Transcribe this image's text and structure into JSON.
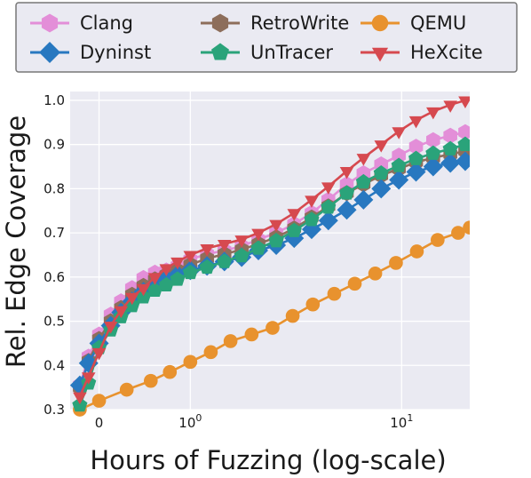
{
  "chart_data": {
    "type": "line",
    "title": "",
    "xlabel": "Hours of Fuzzing (log-scale)",
    "ylabel": "Rel. Edge Coverage",
    "xscale": "log",
    "xlim": [
      0.27,
      21
    ],
    "ylim": [
      0.3,
      1.02
    ],
    "grid": true,
    "background": "#eaeaf2",
    "legend_position": "top",
    "y_ticks": [
      "0.3",
      "0.4",
      "0.5",
      "0.6",
      "0.7",
      "0.8",
      "0.9",
      "1.0"
    ],
    "x_ticks": [
      {
        "value": 0.37,
        "label": "0"
      },
      {
        "value": 1,
        "base": "10",
        "exp": "0"
      },
      {
        "value": 10,
        "base": "10",
        "exp": "1"
      }
    ],
    "series": [
      {
        "name": "Clang",
        "color": "#e38ed8",
        "marker": "hexagon",
        "x": [
          0.3,
          0.33,
          0.37,
          0.42,
          0.47,
          0.53,
          0.6,
          0.68,
          0.77,
          0.87,
          1,
          1.2,
          1.45,
          1.75,
          2.1,
          2.55,
          3.1,
          3.75,
          4.5,
          5.5,
          6.6,
          8,
          9.7,
          11.7,
          14.1,
          17,
          20
        ],
        "y": [
          0.355,
          0.42,
          0.47,
          0.515,
          0.545,
          0.575,
          0.598,
          0.61,
          0.615,
          0.625,
          0.64,
          0.652,
          0.66,
          0.67,
          0.685,
          0.7,
          0.72,
          0.745,
          0.775,
          0.81,
          0.835,
          0.855,
          0.875,
          0.895,
          0.91,
          0.92,
          0.928
        ]
      },
      {
        "name": "RetroWrite",
        "color": "#8d6e5b",
        "marker": "hexagon",
        "x": [
          0.3,
          0.33,
          0.37,
          0.42,
          0.47,
          0.53,
          0.6,
          0.68,
          0.77,
          0.87,
          1,
          1.2,
          1.45,
          1.75,
          2.1,
          2.55,
          3.1,
          3.75,
          4.5,
          5.5,
          6.6,
          8,
          9.7,
          11.7,
          14.1,
          17,
          20
        ],
        "y": [
          0.35,
          0.41,
          0.46,
          0.5,
          0.53,
          0.56,
          0.58,
          0.595,
          0.605,
          0.615,
          0.628,
          0.642,
          0.652,
          0.662,
          0.675,
          0.69,
          0.71,
          0.735,
          0.76,
          0.79,
          0.81,
          0.83,
          0.845,
          0.86,
          0.87,
          0.878,
          0.885
        ]
      },
      {
        "name": "QEMU",
        "color": "#e8922e",
        "marker": "circle",
        "x": [
          0.3,
          0.37,
          0.5,
          0.65,
          0.8,
          1,
          1.25,
          1.55,
          1.95,
          2.45,
          3.05,
          3.8,
          4.8,
          6,
          7.5,
          9.4,
          11.8,
          14.8,
          18.5,
          21
        ],
        "y": [
          0.3,
          0.32,
          0.345,
          0.365,
          0.385,
          0.408,
          0.43,
          0.455,
          0.47,
          0.485,
          0.512,
          0.538,
          0.562,
          0.585,
          0.608,
          0.632,
          0.658,
          0.684,
          0.7,
          0.712
        ]
      },
      {
        "name": "Dyninst",
        "color": "#2878c0",
        "marker": "diamond",
        "x": [
          0.3,
          0.33,
          0.37,
          0.42,
          0.47,
          0.53,
          0.6,
          0.68,
          0.77,
          0.87,
          1,
          1.2,
          1.45,
          1.75,
          2.1,
          2.55,
          3.1,
          3.75,
          4.5,
          5.5,
          6.6,
          8,
          9.7,
          11.7,
          14.1,
          17,
          20
        ],
        "y": [
          0.355,
          0.405,
          0.45,
          0.49,
          0.52,
          0.545,
          0.567,
          0.582,
          0.595,
          0.605,
          0.615,
          0.625,
          0.635,
          0.645,
          0.66,
          0.672,
          0.688,
          0.708,
          0.728,
          0.752,
          0.775,
          0.8,
          0.82,
          0.838,
          0.85,
          0.858,
          0.862
        ]
      },
      {
        "name": "UnTracer",
        "color": "#2aa37a",
        "marker": "pentagon",
        "x": [
          0.3,
          0.33,
          0.37,
          0.42,
          0.47,
          0.53,
          0.6,
          0.68,
          0.77,
          0.87,
          1,
          1.2,
          1.45,
          1.75,
          2.1,
          2.55,
          3.1,
          3.75,
          4.5,
          5.5,
          6.6,
          8,
          9.7,
          11.7,
          14.1,
          17,
          20
        ],
        "y": [
          0.31,
          0.36,
          0.44,
          0.48,
          0.51,
          0.535,
          0.555,
          0.57,
          0.582,
          0.595,
          0.61,
          0.622,
          0.635,
          0.648,
          0.665,
          0.682,
          0.705,
          0.73,
          0.758,
          0.79,
          0.815,
          0.835,
          0.852,
          0.868,
          0.88,
          0.89,
          0.9
        ]
      },
      {
        "name": "HeXcite",
        "color": "#d6494f",
        "marker": "triangle-down",
        "x": [
          0.3,
          0.33,
          0.37,
          0.42,
          0.47,
          0.53,
          0.6,
          0.68,
          0.77,
          0.87,
          1,
          1.2,
          1.45,
          1.75,
          2.1,
          2.55,
          3.1,
          3.75,
          4.5,
          5.5,
          6.6,
          8,
          9.7,
          11.7,
          14.1,
          17,
          20
        ],
        "y": [
          0.33,
          0.375,
          0.43,
          0.49,
          0.525,
          0.555,
          0.575,
          0.6,
          0.62,
          0.635,
          0.65,
          0.665,
          0.675,
          0.685,
          0.7,
          0.72,
          0.745,
          0.775,
          0.805,
          0.84,
          0.87,
          0.9,
          0.93,
          0.955,
          0.975,
          0.99,
          1.0
        ]
      }
    ]
  }
}
